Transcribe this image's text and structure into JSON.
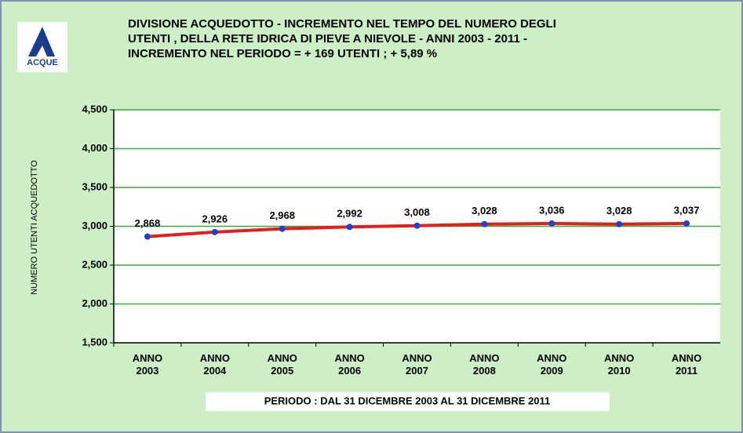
{
  "chart_data": {
    "type": "line",
    "logo": "ACQUE",
    "title": [
      "DIVISIONE ACQUEDOTTO - INCREMENTO NEL TEMPO DEL NUMERO DEGLI",
      "UTENTI , DELLA RETE IDRICA DI PIEVE A NIEVOLE - ANNI  2003 - 2011 -",
      "INCREMENTO NEL PERIODO =  + 169  UTENTI  ;  + 5,89  %"
    ],
    "y_label": "NUMERO UTENTI ACQUEDOTTO",
    "footer": "PERIODO  :  DAL 31  DICEMBRE 2003  AL 31  DICEMBRE 2011",
    "categories": [
      "ANNO\n2003",
      "ANNO\n2004",
      "ANNO\n2005",
      "ANNO\n2006",
      "ANNO\n2007",
      "ANNO\n2008",
      "ANNO\n2009",
      "ANNO\n2010",
      "ANNO\n2011"
    ],
    "series": [
      {
        "name": "Numero utenti",
        "color": "#e0201a",
        "marker_color": "#2040d0",
        "values": [
          2868,
          2926,
          2968,
          2992,
          3008,
          3028,
          3036,
          3028,
          3037
        ],
        "value_labels": [
          "2,868",
          "2,926",
          "2,968",
          "2,992",
          "3,008",
          "3,028",
          "3,036",
          "3,028",
          "3,037"
        ]
      }
    ],
    "ylim": [
      1500,
      4500
    ],
    "yticks": [
      {
        "value": 1500,
        "label": "1,500"
      },
      {
        "value": 2000,
        "label": "2,000"
      },
      {
        "value": 2500,
        "label": "2,500"
      },
      {
        "value": 3000,
        "label": "3,000"
      },
      {
        "value": 3500,
        "label": "3,500"
      },
      {
        "value": 4000,
        "label": "4,000"
      },
      {
        "value": 4500,
        "label": "4,500"
      }
    ],
    "grid": true,
    "grid_color": "#3aa83a"
  }
}
